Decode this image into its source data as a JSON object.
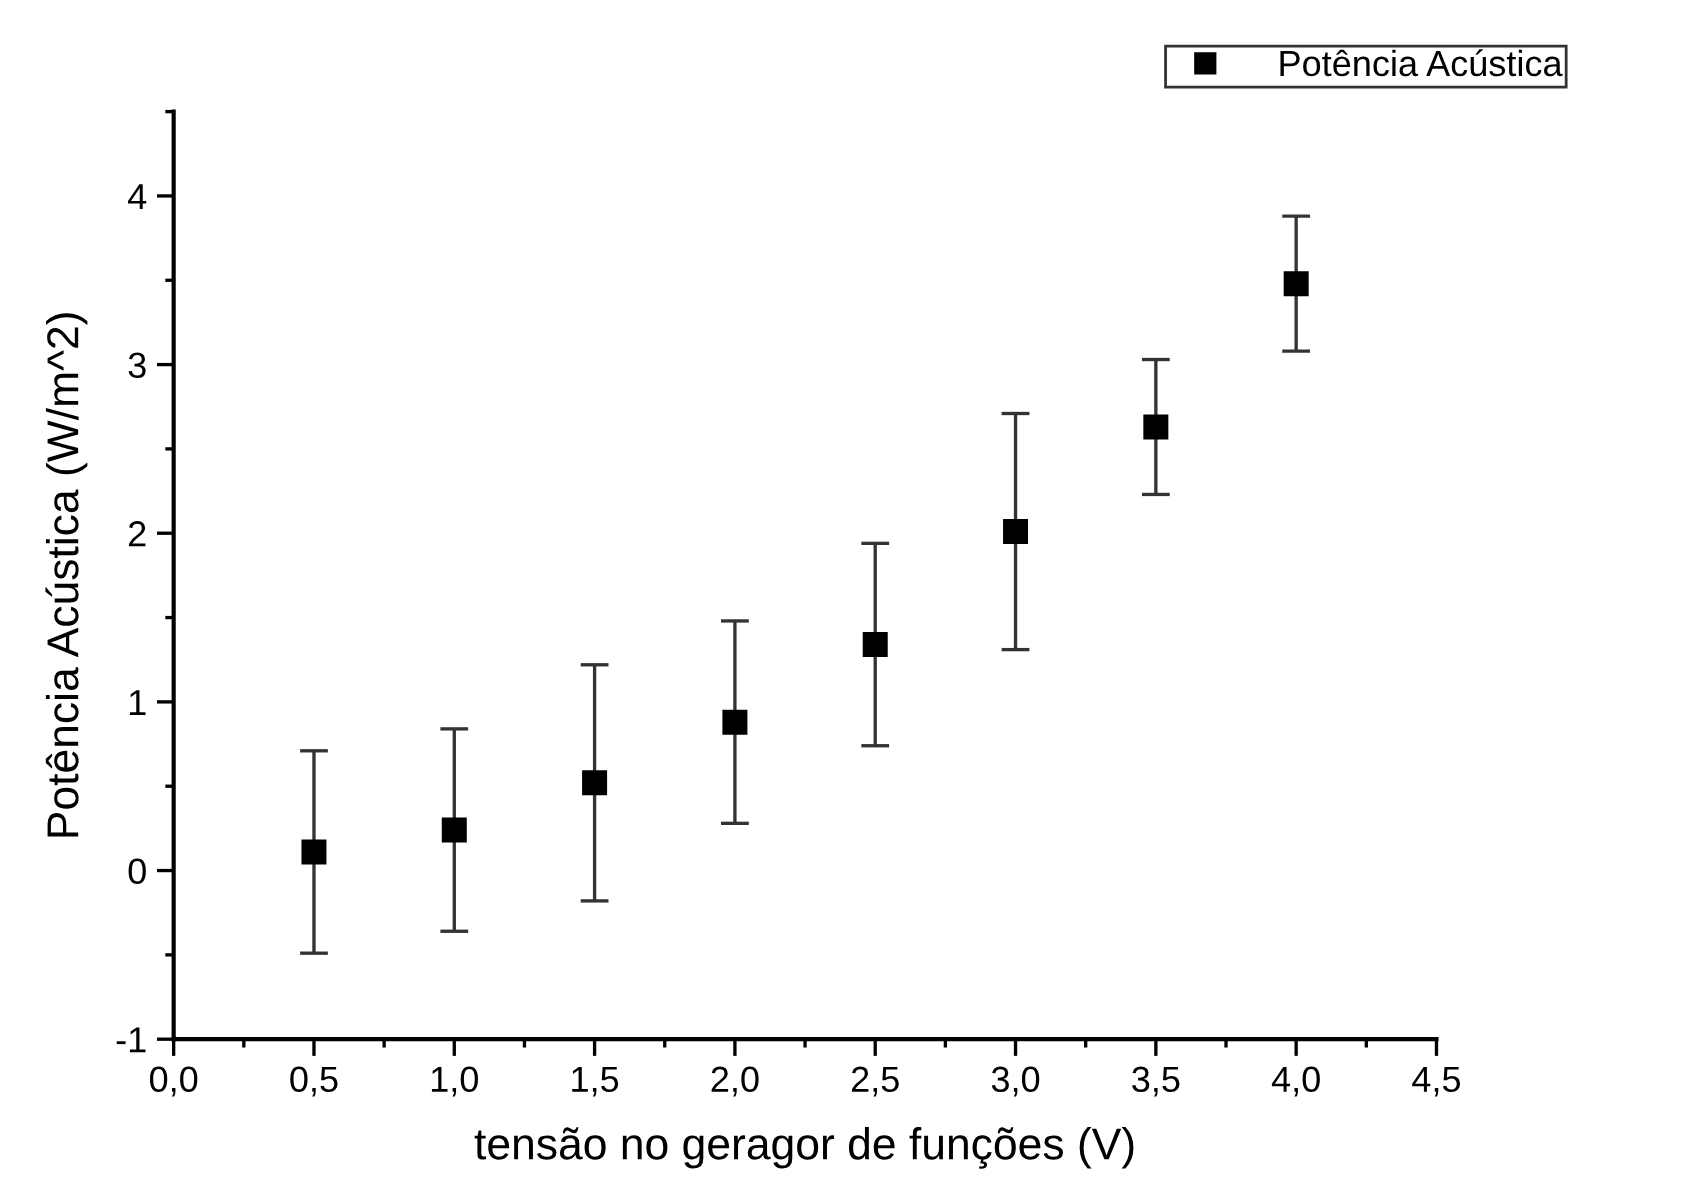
{
  "chart_data": {
    "type": "scatter",
    "xlabel": "tensão no geragor de funções (V)",
    "ylabel": "Potência Acústica (W/m^2)",
    "x": [
      0.5,
      1.0,
      1.5,
      2.0,
      2.5,
      3.0,
      3.5,
      4.0
    ],
    "series": [
      {
        "name": "Potência Acústica",
        "color": "#000000",
        "values": [
          0.11,
          0.24,
          0.52,
          0.88,
          1.34,
          2.01,
          2.63,
          3.48
        ],
        "errors": [
          0.6,
          0.6,
          0.7,
          0.6,
          0.6,
          0.7,
          0.4,
          0.4
        ]
      }
    ],
    "marker": "square",
    "legend": "top right",
    "grid": false,
    "xlim": [
      0,
      4.5
    ],
    "xticks": [
      {
        "value": 0,
        "label": "0,0"
      },
      {
        "value": 0.5,
        "label": "0,5"
      },
      {
        "value": 1.0,
        "label": "1,0"
      },
      {
        "value": 1.5,
        "label": "1,5"
      },
      {
        "value": 2.0,
        "label": "2,0"
      },
      {
        "value": 2.5,
        "label": "2,5"
      },
      {
        "value": 3.0,
        "label": "3,0"
      },
      {
        "value": 3.5,
        "label": "3,5"
      },
      {
        "value": 4.0,
        "label": "4,0"
      },
      {
        "value": 4.5,
        "label": "4,5"
      }
    ],
    "ylim": [
      -1,
      4.5
    ],
    "yticks": [
      -1,
      0,
      1,
      2,
      3,
      4
    ]
  }
}
